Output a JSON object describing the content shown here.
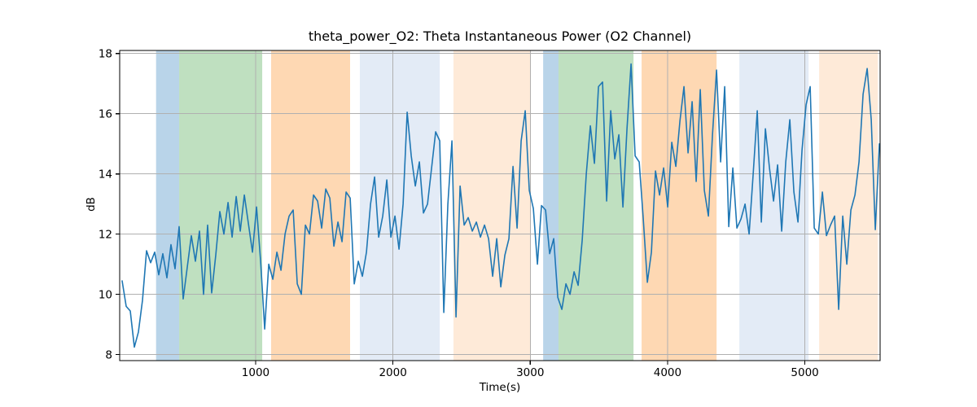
{
  "chart_data": {
    "type": "line",
    "title": "theta_power_O2: Theta Instantaneous Power (O2 Channel)",
    "xlabel": "Time(s)",
    "ylabel": "dB",
    "xlim": [
      10,
      5548
    ],
    "ylim": [
      7.8,
      18.1
    ],
    "xticks": [
      1000,
      2000,
      3000,
      4000,
      5000
    ],
    "yticks": [
      8,
      10,
      12,
      14,
      16,
      18
    ],
    "grid": true,
    "grid_color": "#b0b0b0",
    "line_color": "#1f77b4",
    "background_color": "#ffffff",
    "bands": [
      {
        "t0": 275,
        "t1": 443,
        "color": "#b9d4e9"
      },
      {
        "t0": 443,
        "t1": 1048,
        "color": "#bfe0c0"
      },
      {
        "t0": 1113,
        "t1": 1688,
        "color": "#fed8b3"
      },
      {
        "t0": 1759,
        "t1": 2341,
        "color": "#e3ebf6"
      },
      {
        "t0": 2441,
        "t1": 3005,
        "color": "#feead8"
      },
      {
        "t0": 3094,
        "t1": 3206,
        "color": "#b9d4e9"
      },
      {
        "t0": 3206,
        "t1": 3752,
        "color": "#bfe0c0"
      },
      {
        "t0": 3811,
        "t1": 4357,
        "color": "#fed8b3"
      },
      {
        "t0": 4523,
        "t1": 5027,
        "color": "#e3ebf6"
      },
      {
        "t0": 5104,
        "t1": 5531,
        "color": "#feead8"
      }
    ],
    "series": [
      {
        "name": "theta_power_O2",
        "t_start": 28,
        "t_step": 29.65,
        "values": [
          10.45,
          9.6,
          9.45,
          8.25,
          8.75,
          9.8,
          11.45,
          11.05,
          11.4,
          10.65,
          11.35,
          10.55,
          11.65,
          10.85,
          12.25,
          9.85,
          10.9,
          11.95,
          11.1,
          12.1,
          10.0,
          12.3,
          10.05,
          11.3,
          12.75,
          12.0,
          13.05,
          11.9,
          13.25,
          12.1,
          13.3,
          12.35,
          11.4,
          12.9,
          11.1,
          8.85,
          11.0,
          10.5,
          11.4,
          10.8,
          12.0,
          12.6,
          12.8,
          10.35,
          10.0,
          12.3,
          12.0,
          13.3,
          13.1,
          12.2,
          13.5,
          13.2,
          11.6,
          12.4,
          11.75,
          13.4,
          13.2,
          10.35,
          11.1,
          10.6,
          11.4,
          13.0,
          13.9,
          11.9,
          12.6,
          13.8,
          11.9,
          12.6,
          11.5,
          13.0,
          16.05,
          14.6,
          13.6,
          14.4,
          12.7,
          13.0,
          14.2,
          15.4,
          15.1,
          9.4,
          13.0,
          15.1,
          9.25,
          13.6,
          12.3,
          12.55,
          12.1,
          12.4,
          11.9,
          12.3,
          11.85,
          10.6,
          11.85,
          10.25,
          11.3,
          11.85,
          14.25,
          12.2,
          15.1,
          16.1,
          13.45,
          12.85,
          11.0,
          12.95,
          12.8,
          11.35,
          11.85,
          9.9,
          9.5,
          10.35,
          10.0,
          10.75,
          10.3,
          11.8,
          14.0,
          15.6,
          14.35,
          16.9,
          17.05,
          13.1,
          16.1,
          14.5,
          15.3,
          12.9,
          15.5,
          17.65,
          14.6,
          14.4,
          12.5,
          10.4,
          11.4,
          14.1,
          13.3,
          14.2,
          12.9,
          15.05,
          14.25,
          15.75,
          16.9,
          14.7,
          16.4,
          13.75,
          16.8,
          13.45,
          12.6,
          15.3,
          17.45,
          14.4,
          16.9,
          12.25,
          14.2,
          12.2,
          12.5,
          13.0,
          12.0,
          14.0,
          16.1,
          12.4,
          15.5,
          14.2,
          13.1,
          14.3,
          12.1,
          14.4,
          15.8,
          13.4,
          12.4,
          14.8,
          16.3,
          16.9,
          12.2,
          12.0,
          13.4,
          11.95,
          12.3,
          12.6,
          9.5,
          12.6,
          11.0,
          12.8,
          13.3,
          14.4,
          16.65,
          17.5,
          15.8,
          12.15,
          15.0
        ]
      }
    ]
  }
}
